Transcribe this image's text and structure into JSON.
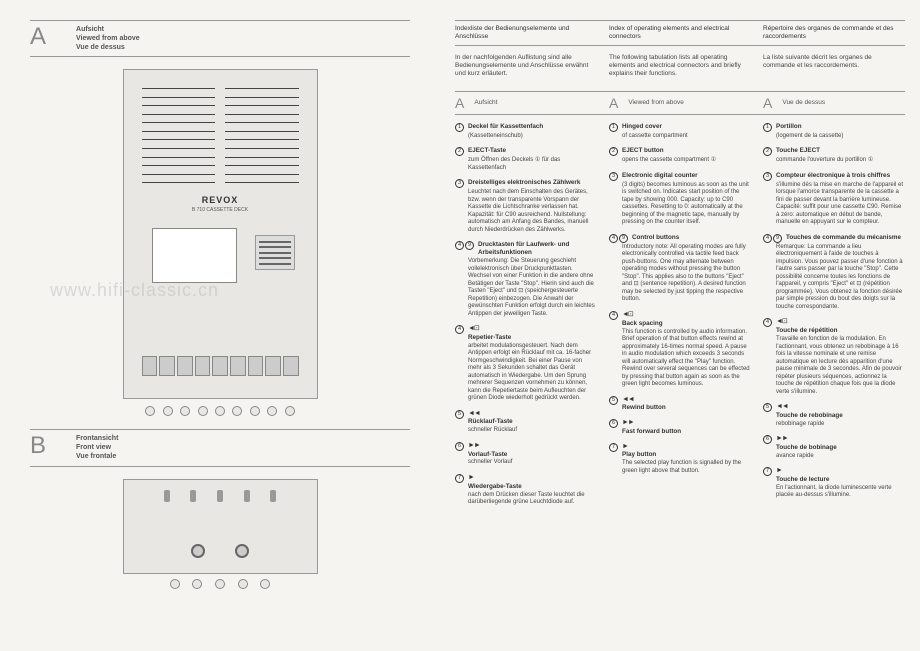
{
  "left": {
    "sectionA": {
      "letter": "A",
      "labels": [
        "Aufsicht",
        "Viewed from above",
        "Vue de dessus"
      ]
    },
    "sectionB": {
      "letter": "B",
      "labels": [
        "Frontansicht",
        "Front view",
        "Vue frontale"
      ]
    },
    "device": {
      "brand": "REVOX",
      "model": "B 710 CASSETTE DECK"
    },
    "watermark": "www.hifi-classic.cn"
  },
  "right": {
    "header": {
      "de": "Indexliste der Bedienungselemente und Anschlüsse",
      "en": "Index of operating elements and electrical connectors",
      "fr": "Répertoire des organes de commande et des raccordements"
    },
    "intro": {
      "de": "In der nachfolgenden Auflistung sind alle Bedienungselemente und Anschlüsse erwähnt und kurz erläutert.",
      "en": "The following tabulation lists all operating elements and electrical connectors and briefly explains their functions.",
      "fr": "La liste suivante décrit les organes de commande et les raccordements."
    },
    "langHeader": {
      "letter": "A",
      "de": "Aufsicht",
      "en": "Viewed from above",
      "fr": "Vue de dessus"
    },
    "items": [
      {
        "num": [
          "1"
        ],
        "de": {
          "title": "Deckel für Kassettenfach",
          "body": "(Kassetteneinschub)"
        },
        "en": {
          "title": "Hinged cover",
          "body": "of cassette compartment"
        },
        "fr": {
          "title": "Portillon",
          "body": "(logement de la cassette)"
        }
      },
      {
        "num": [
          "2"
        ],
        "de": {
          "title": "EJECT-Taste",
          "body": "zum Öffnen des Deckels ① für das Kassettenfach"
        },
        "en": {
          "title": "EJECT button",
          "body": "opens the cassette compartment ①"
        },
        "fr": {
          "title": "Touche EJECT",
          "body": "commande l'ouverture du portillon ①"
        }
      },
      {
        "num": [
          "3"
        ],
        "de": {
          "title": "Dreistelliges elektronisches Zählwerk",
          "body": "Leuchtet nach dem Einschalten des Gerätes, bzw. wenn der transparente Vorspann der Kassette die Lichtschranke verlassen hat. Kapazität: für C90 ausreichend. Nullstellung: automatisch am Anfang des Bandes, manuell durch Niederdrücken des Zählwerks."
        },
        "en": {
          "title": "Electronic digital counter",
          "body": "(3 digits) becomes luminous as soon as the unit is switched on. Indicates start position of the tape by showing 000. Capacity: up to C90 cassettes. Resetting to 0: automatically at the beginning of the magnetic tape, manually by pressing on the counter itself."
        },
        "fr": {
          "title": "Compteur électronique à trois chiffres",
          "body": "s'illumine dès la mise en marche de l'appareil et lorsque l'amorce transparente de la cassette a fini de passer devant la barrière lumineuse. Capacité: suffit pour une cassette C90. Remise à zéro: automatique en début de bande, manuelle en appuyant sur le compteur."
        }
      },
      {
        "num": [
          "4",
          "9"
        ],
        "de": {
          "title": "Drucktasten für Laufwerk- und Arbeitsfunktionen",
          "body": "Vorbemerkung: Die Steuerung geschieht vollelektronisch über Druckpunkttasten. Wechsel von einer Funktion in die andere ohne Betätigen der Taste \"Stop\". Hierin sind auch die Tasten \"Eject\" und ⊡ (speichergesteuerte Repetition) einbezogen. Die Anwahl der gewünschten Funktion erfolgt durch ein leichtes Antippen der jeweiligen Taste."
        },
        "en": {
          "title": "Control buttons",
          "body": "Introductory note: All operating modes are fully electronically controlled via tactile feed back push-buttons. One may alternate between operating modes without pressing the button \"Stop\". This applies also to the buttons \"Eject\" and ⊡ (sentence repetition). A desired function may be selected by just tipping the respective button."
        },
        "fr": {
          "title": "Touches de commande du mécanisme",
          "body": "Remarque: La commande a lieu électroniquement à l'aide de touches à impulsion. Vous pouvez passer d'une fonction à l'autre sans passer par la touche \"Stop\". Cette possibilité concerne toutes les fonctions de l'appareil, y compris \"Eject\" et ⊡ (répétition programmée). Vous obtenez la fonction désirée par simple pression du bout des doigts sur la touche correspondante."
        }
      },
      {
        "num": [
          "4"
        ],
        "sym": "◄⊡",
        "de": {
          "title": "Repetier-Taste",
          "body": "arbeitet modulationsgesteuert. Nach dem Antippen erfolgt ein Rücklauf mit ca. 16-facher Normgeschwindigkeit. Bei einer Pause von mehr als 3 Sekunden schaltet das Gerät automatisch in Wiedergabe. Um den Sprung mehrerer Sequenzen vornehmen zu können, kann die Repetiertaste beim Aufleuchten der grünen Diode wiederholt gedrückt werden."
        },
        "en": {
          "title": "Back spacing",
          "body": "This function is controlled by audio information. Brief operation of that button effects rewind at approximately 16-times normal speed. A pause in audio modulation which exceeds 3 seconds will automatically effect the \"Play\" function. Rewind over several sequences can be effected by pressing that button again as soon as the green light becomes luminous."
        },
        "fr": {
          "title": "Touche de répétition",
          "body": "Travaille en fonction de la modulation. En l'actionnant, vous obtenez un rebobinage à 16 fois la vitesse nominale et une remise automatique en lecture dès apparition d'une pause minimale de 3 secondes. Afin de pouvoir répéter plusieurs séquences, actionnez la touche de répétition chaque fois que la diode verte s'illumine."
        }
      },
      {
        "num": [
          "5"
        ],
        "sym": "◄◄",
        "de": {
          "title": "Rücklauf-Taste",
          "body": "schneller Rücklauf"
        },
        "en": {
          "title": "Rewind button",
          "body": ""
        },
        "fr": {
          "title": "Touche de rebobinage",
          "body": "rebobinage rapide"
        }
      },
      {
        "num": [
          "6"
        ],
        "sym": "►►",
        "de": {
          "title": "Vorlauf-Taste",
          "body": "schneller Vorlauf"
        },
        "en": {
          "title": "Fast forward button",
          "body": ""
        },
        "fr": {
          "title": "Touche de bobinage",
          "body": "avance rapide"
        }
      },
      {
        "num": [
          "7"
        ],
        "sym": "►",
        "de": {
          "title": "Wiedergabe-Taste",
          "body": "nach dem Drücken dieser Taste leuchtet die darüberliegende grüne Leuchtdiode auf."
        },
        "en": {
          "title": "Play button",
          "body": "The selected play function is signalled by the green light above that button."
        },
        "fr": {
          "title": "Touche de lecture",
          "body": "En l'actionnant, la diode luminescente verte placée au-dessus s'illumine."
        }
      }
    ]
  }
}
